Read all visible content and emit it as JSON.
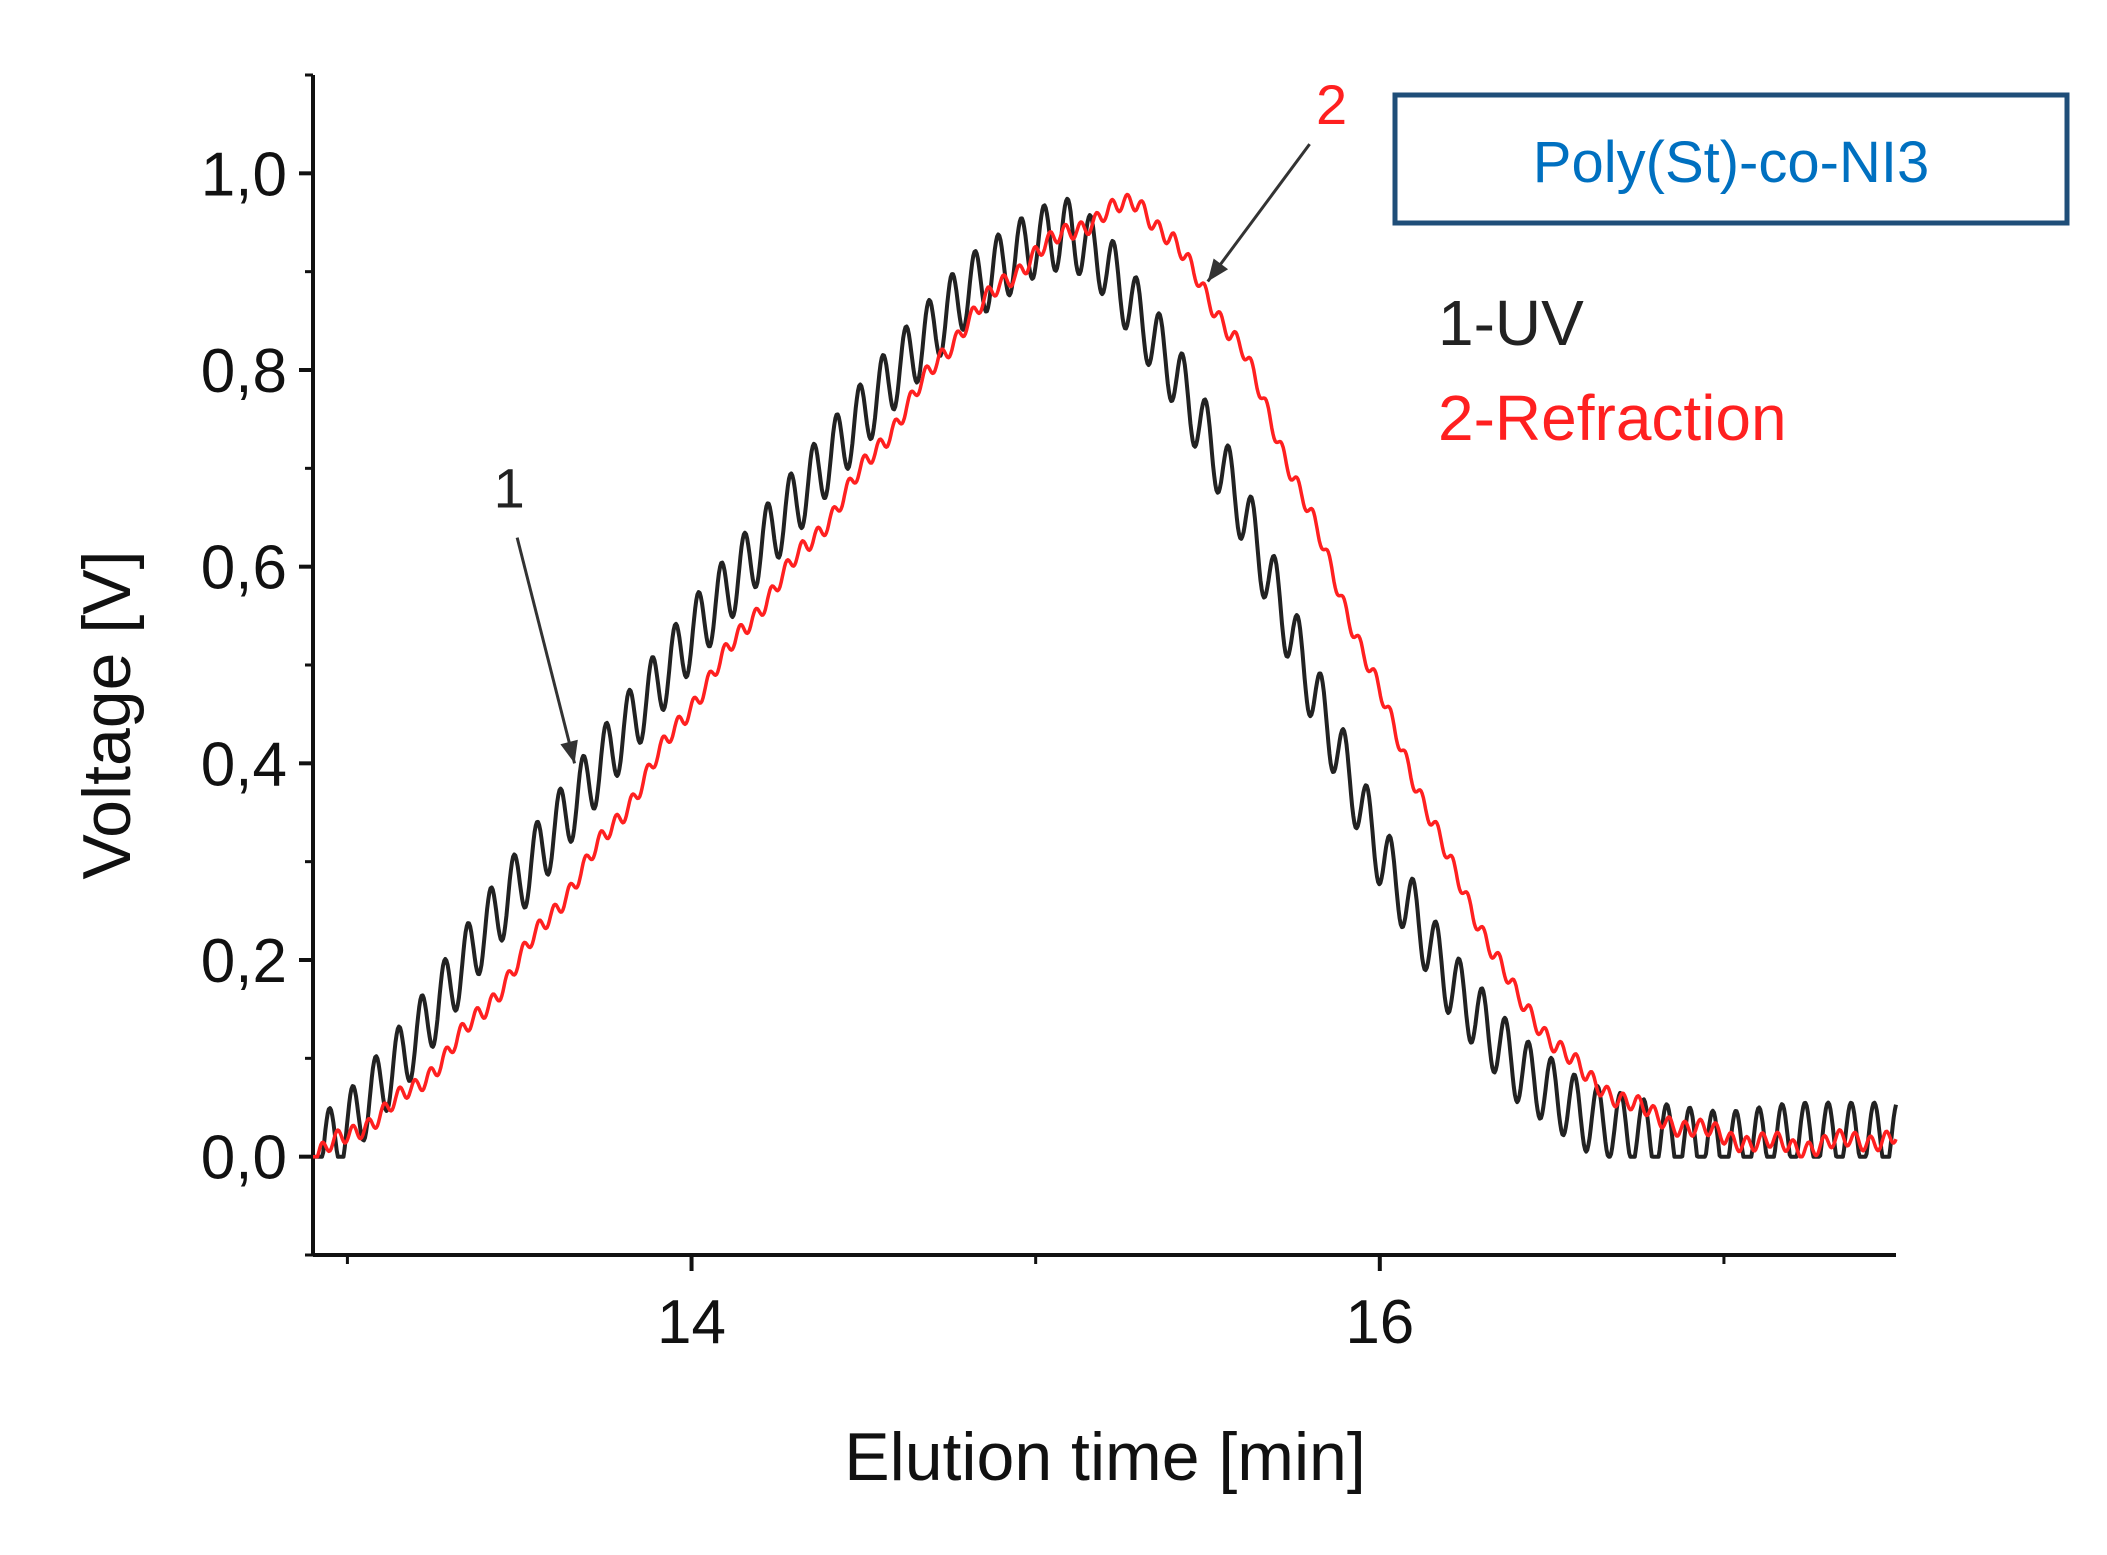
{
  "chart_data": {
    "type": "line",
    "title": "",
    "xlabel": "Elution time  [min]",
    "ylabel": "Voltage  [V]",
    "xlim": [
      12.9,
      17.5
    ],
    "ylim": [
      -0.1,
      1.1
    ],
    "x_ticks": [
      14,
      16
    ],
    "x_tick_labels": [
      "14",
      "16"
    ],
    "y_ticks": [
      0.0,
      0.2,
      0.4,
      0.6,
      0.8,
      1.0
    ],
    "y_tick_labels": [
      "0,0",
      "0,2",
      "0,4",
      "0,6",
      "0,8",
      "1,0"
    ],
    "grid": false,
    "legend": {
      "title": "Poly(St)-co-NI3",
      "entries": [
        "1-UV",
        "2-Refraction"
      ],
      "position": "top-right"
    },
    "series": [
      {
        "name": "1-UV",
        "color": "#222222",
        "x": [
          12.9,
          13.0,
          13.2,
          13.4,
          13.6,
          13.8,
          14.0,
          14.2,
          14.4,
          14.6,
          14.8,
          15.0,
          15.1,
          15.2,
          15.4,
          15.6,
          15.8,
          16.0,
          16.2,
          16.4,
          16.6,
          16.8,
          17.0,
          17.2,
          17.5
        ],
        "y": [
          0.0,
          0.03,
          0.12,
          0.23,
          0.33,
          0.43,
          0.53,
          0.62,
          0.71,
          0.8,
          0.88,
          0.93,
          0.94,
          0.91,
          0.8,
          0.66,
          0.48,
          0.31,
          0.18,
          0.09,
          0.04,
          0.02,
          0.01,
          0.02,
          0.02
        ],
        "oscillation": 0.035
      },
      {
        "name": "2-Refraction",
        "color": "#ff2020",
        "x": [
          12.9,
          13.0,
          13.2,
          13.4,
          13.6,
          13.8,
          14.0,
          14.2,
          14.4,
          14.6,
          14.8,
          15.0,
          15.2,
          15.3,
          15.4,
          15.6,
          15.8,
          16.0,
          16.2,
          16.4,
          16.6,
          16.8,
          17.0,
          17.2,
          17.5
        ],
        "y": [
          0.0,
          0.02,
          0.07,
          0.15,
          0.25,
          0.35,
          0.46,
          0.56,
          0.65,
          0.75,
          0.85,
          0.92,
          0.96,
          0.97,
          0.93,
          0.82,
          0.65,
          0.47,
          0.3,
          0.16,
          0.08,
          0.04,
          0.02,
          0.01,
          0.02
        ],
        "oscillation": 0.008
      }
    ],
    "annotations": [
      {
        "label": "1",
        "color": "#222222",
        "text_at": [
          13.47,
          0.66
        ],
        "points_to": [
          13.66,
          0.4
        ]
      },
      {
        "label": "2",
        "color": "#ff2020",
        "text_at": [
          15.86,
          1.05
        ],
        "points_to": [
          15.5,
          0.89
        ]
      }
    ]
  }
}
